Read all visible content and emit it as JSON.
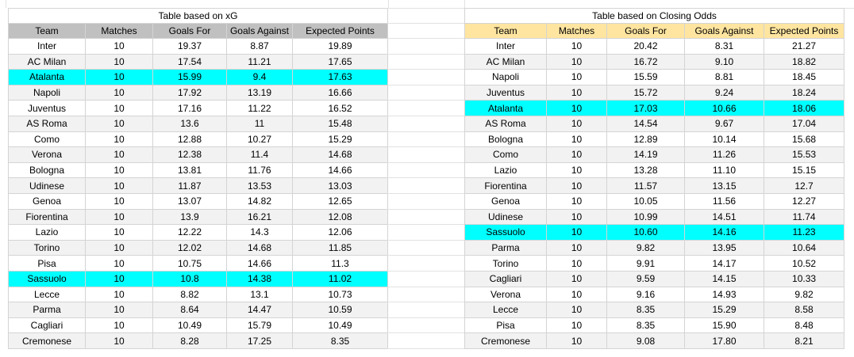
{
  "colors": {
    "background": "#ffffff",
    "grid_line": "#d4d4d4",
    "header_gray": "#c0c0c0",
    "header_yellow": "#ffe5a0",
    "highlight_cyan": "#00ffff",
    "row_stripe": "#f2f2f2",
    "text": "#000000"
  },
  "tables": [
    {
      "title": "Table based on xG",
      "columns": [
        "Team",
        "Matches",
        "Goals For",
        "Goals Against",
        "Expected Points"
      ],
      "highlighted_rows": [
        2,
        15
      ],
      "rows": [
        [
          "Inter",
          "10",
          "19.37",
          "8.87",
          "19.89"
        ],
        [
          "AC Milan",
          "10",
          "17.54",
          "11.21",
          "17.65"
        ],
        [
          "Atalanta",
          "10",
          "15.99",
          "9.4",
          "17.63"
        ],
        [
          "Napoli",
          "10",
          "17.92",
          "13.19",
          "16.66"
        ],
        [
          "Juventus",
          "10",
          "17.16",
          "11.22",
          "16.52"
        ],
        [
          "AS Roma",
          "10",
          "13.6",
          "11",
          "15.48"
        ],
        [
          "Como",
          "10",
          "12.88",
          "10.27",
          "15.29"
        ],
        [
          "Verona",
          "10",
          "12.38",
          "11.4",
          "14.68"
        ],
        [
          "Bologna",
          "10",
          "13.81",
          "11.76",
          "14.66"
        ],
        [
          "Udinese",
          "10",
          "11.87",
          "13.53",
          "13.03"
        ],
        [
          "Genoa",
          "10",
          "13.07",
          "14.82",
          "12.65"
        ],
        [
          "Fiorentina",
          "10",
          "13.9",
          "16.21",
          "12.08"
        ],
        [
          "Lazio",
          "10",
          "12.22",
          "14.3",
          "12.06"
        ],
        [
          "Torino",
          "10",
          "12.02",
          "14.68",
          "11.85"
        ],
        [
          "Pisa",
          "10",
          "10.75",
          "14.66",
          "11.3"
        ],
        [
          "Sassuolo",
          "10",
          "10.8",
          "14.38",
          "11.02"
        ],
        [
          "Lecce",
          "10",
          "8.82",
          "13.1",
          "10.73"
        ],
        [
          "Parma",
          "10",
          "8.64",
          "14.47",
          "10.59"
        ],
        [
          "Cagliari",
          "10",
          "10.49",
          "15.79",
          "10.49"
        ],
        [
          "Cremonese",
          "10",
          "8.28",
          "17.25",
          "8.35"
        ]
      ]
    },
    {
      "title": "Table based on Closing Odds",
      "columns": [
        "Team",
        "Matches",
        "Goals For",
        "Goals Against",
        "Expected Points"
      ],
      "highlighted_rows": [
        4,
        12
      ],
      "rows": [
        [
          "Inter",
          "10",
          "20.42",
          "8.31",
          "21.27"
        ],
        [
          "AC Milan",
          "10",
          "16.72",
          "9.10",
          "18.82"
        ],
        [
          "Napoli",
          "10",
          "15.59",
          "8.81",
          "18.45"
        ],
        [
          "Juventus",
          "10",
          "15.72",
          "9.24",
          "18.24"
        ],
        [
          "Atalanta",
          "10",
          "17.03",
          "10.66",
          "18.06"
        ],
        [
          "AS Roma",
          "10",
          "14.54",
          "9.67",
          "17.04"
        ],
        [
          "Bologna",
          "10",
          "12.89",
          "10.14",
          "15.68"
        ],
        [
          "Como",
          "10",
          "14.19",
          "11.26",
          "15.53"
        ],
        [
          "Lazio",
          "10",
          "13.28",
          "11.10",
          "15.15"
        ],
        [
          "Fiorentina",
          "10",
          "11.57",
          "13.15",
          "12.7"
        ],
        [
          "Genoa",
          "10",
          "10.05",
          "11.56",
          "12.27"
        ],
        [
          "Udinese",
          "10",
          "10.99",
          "14.51",
          "11.74"
        ],
        [
          "Sassuolo",
          "10",
          "10.60",
          "14.16",
          "11.23"
        ],
        [
          "Parma",
          "10",
          "9.82",
          "13.95",
          "10.64"
        ],
        [
          "Torino",
          "10",
          "9.91",
          "14.17",
          "10.52"
        ],
        [
          "Cagliari",
          "10",
          "9.59",
          "14.15",
          "10.33"
        ],
        [
          "Verona",
          "10",
          "9.16",
          "14.93",
          "9.82"
        ],
        [
          "Lecce",
          "10",
          "8.35",
          "15.29",
          "8.58"
        ],
        [
          "Pisa",
          "10",
          "8.35",
          "15.90",
          "8.48"
        ],
        [
          "Cremonese",
          "10",
          "9.08",
          "17.80",
          "8.21"
        ]
      ]
    }
  ]
}
